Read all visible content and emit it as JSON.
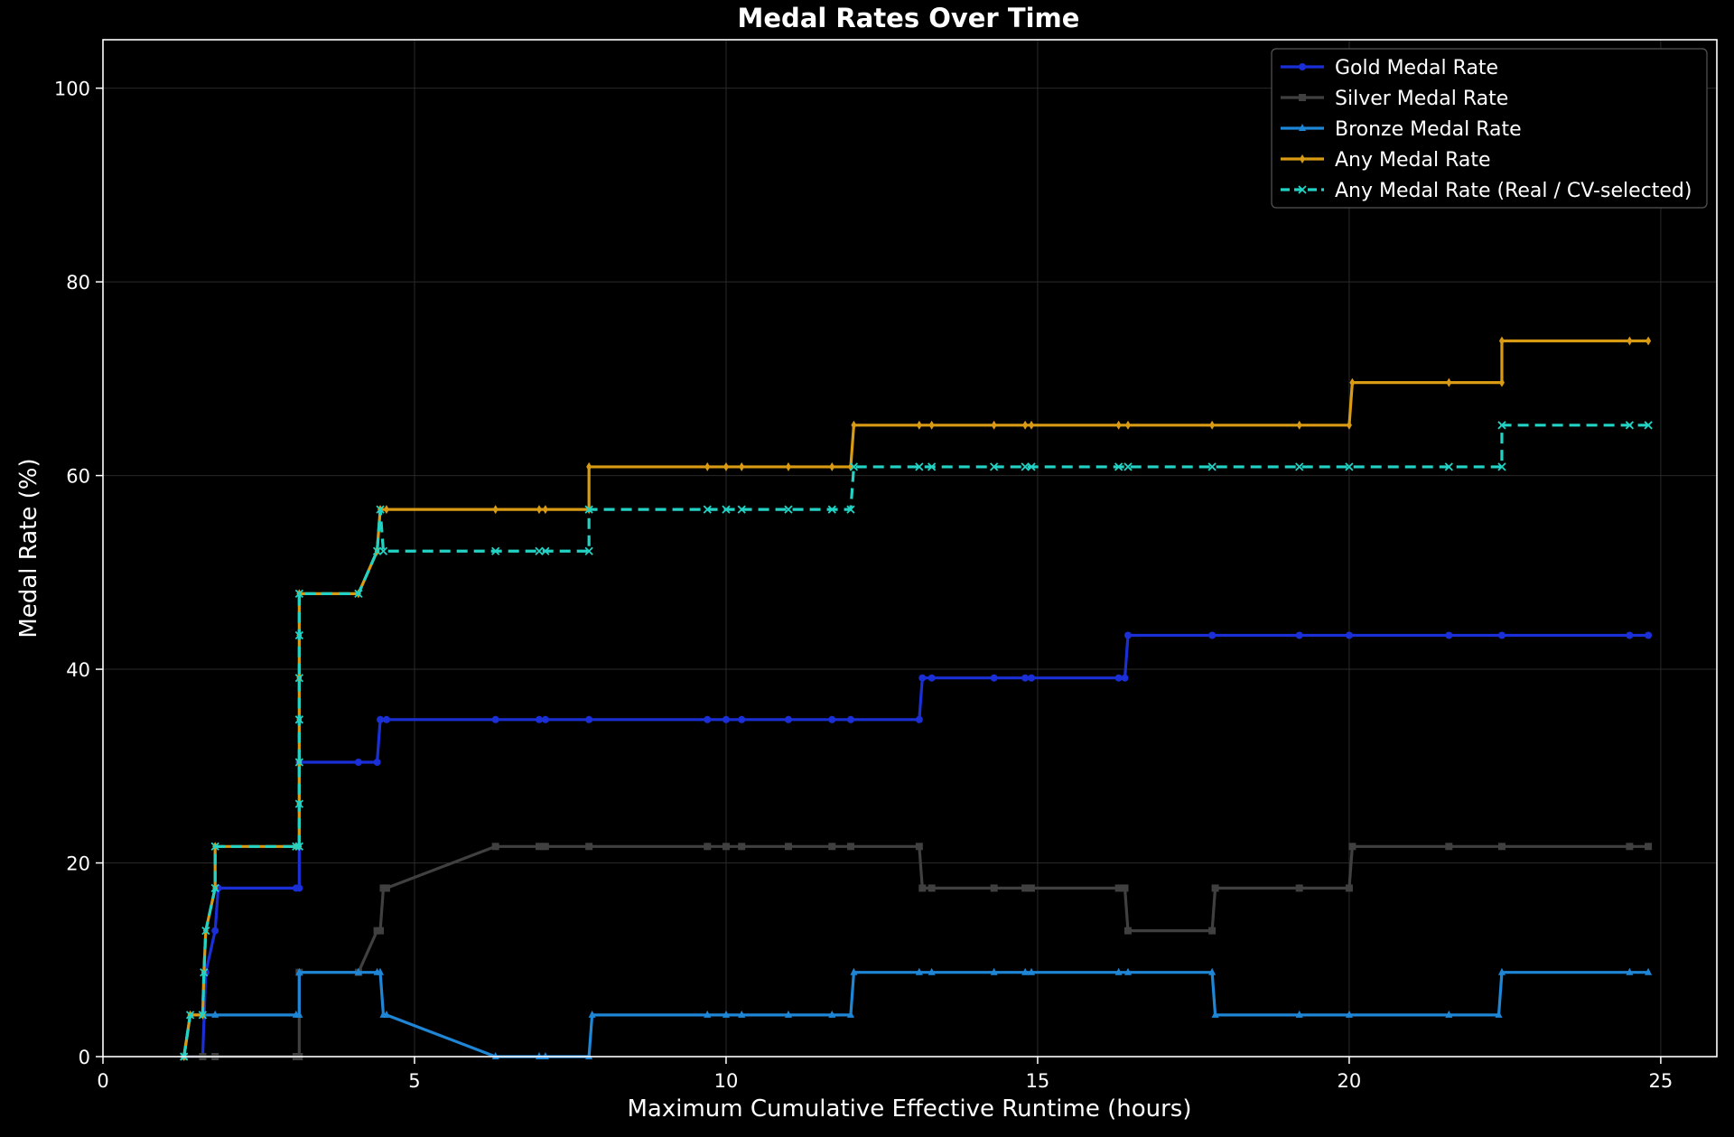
{
  "chart_data": {
    "type": "line",
    "title": "Medal Rates Over Time",
    "xlabel": "Maximum Cumulative Effective Runtime (hours)",
    "ylabel": "Medal Rate (%)",
    "xlim": [
      0,
      25.9
    ],
    "ylim": [
      0,
      105
    ],
    "xticks": [
      0,
      5,
      10,
      15,
      20,
      25
    ],
    "yticks": [
      0,
      20,
      40,
      60,
      80,
      100
    ],
    "grid": true,
    "legend_position": "top-right",
    "series": [
      {
        "name": "Gold Medal Rate",
        "color": "#1a2fd6",
        "marker": "circle",
        "dashed": false,
        "x": [
          1.3,
          1.6,
          1.65,
          1.8,
          1.85,
          3.1,
          3.15,
          3.15,
          4.1,
          4.4,
          4.45,
          4.55,
          6.3,
          7.0,
          7.1,
          7.8,
          9.7,
          10.0,
          10.25,
          11.0,
          11.7,
          12.0,
          13.1,
          13.15,
          13.3,
          14.3,
          14.8,
          14.9,
          16.3,
          16.4,
          16.45,
          17.8,
          19.2,
          20.0,
          21.6,
          22.45,
          24.5,
          24.8
        ],
        "values": [
          0,
          0,
          8.7,
          13.0,
          17.4,
          17.4,
          17.4,
          30.4,
          30.4,
          30.4,
          34.8,
          34.8,
          34.8,
          34.8,
          34.8,
          34.8,
          34.8,
          34.8,
          34.8,
          34.8,
          34.8,
          34.8,
          34.8,
          39.1,
          39.1,
          39.1,
          39.1,
          39.1,
          39.1,
          39.1,
          43.5,
          43.5,
          43.5,
          43.5,
          43.5,
          43.5,
          43.5,
          43.5
        ]
      },
      {
        "name": "Silver Medal Rate",
        "color": "#404040",
        "marker": "square",
        "dashed": false,
        "x": [
          1.3,
          1.6,
          1.8,
          3.1,
          3.15,
          3.15,
          4.1,
          4.4,
          4.45,
          4.5,
          4.55,
          6.3,
          7.0,
          7.1,
          7.8,
          9.7,
          10.0,
          10.25,
          11.0,
          11.7,
          12.0,
          13.1,
          13.15,
          13.3,
          14.3,
          14.8,
          14.9,
          16.3,
          16.4,
          16.45,
          17.8,
          17.85,
          19.2,
          20.0,
          20.05,
          21.6,
          22.45,
          24.5,
          24.8
        ],
        "values": [
          0,
          0,
          0,
          0,
          0,
          8.7,
          8.7,
          13.0,
          13.0,
          17.4,
          17.4,
          21.7,
          21.7,
          21.7,
          21.7,
          21.7,
          21.7,
          21.7,
          21.7,
          21.7,
          21.7,
          21.7,
          17.4,
          17.4,
          17.4,
          17.4,
          17.4,
          17.4,
          17.4,
          13.0,
          13.0,
          17.4,
          17.4,
          17.4,
          21.7,
          21.7,
          21.7,
          21.7,
          21.7
        ]
      },
      {
        "name": "Bronze Medal Rate",
        "color": "#1f86d6",
        "marker": "triangle",
        "dashed": false,
        "x": [
          1.3,
          1.4,
          1.6,
          1.8,
          3.1,
          3.15,
          3.15,
          4.1,
          4.4,
          4.45,
          4.5,
          4.55,
          6.3,
          7.0,
          7.1,
          7.8,
          7.85,
          9.7,
          10.0,
          10.25,
          11.0,
          11.7,
          12.0,
          12.05,
          13.1,
          13.3,
          14.3,
          14.8,
          14.9,
          16.3,
          16.45,
          17.8,
          17.85,
          19.2,
          20.0,
          21.6,
          22.4,
          22.45,
          24.5,
          24.8
        ],
        "values": [
          0,
          4.3,
          4.3,
          4.3,
          4.3,
          4.3,
          8.7,
          8.7,
          8.7,
          8.7,
          4.3,
          4.3,
          0,
          0,
          0,
          0,
          4.3,
          4.3,
          4.3,
          4.3,
          4.3,
          4.3,
          4.3,
          8.7,
          8.7,
          8.7,
          8.7,
          8.7,
          8.7,
          8.7,
          8.7,
          8.7,
          4.3,
          4.3,
          4.3,
          4.3,
          4.3,
          8.7,
          8.7,
          8.7
        ]
      },
      {
        "name": "Any Medal Rate",
        "color": "#d99a14",
        "marker": "diamond",
        "dashed": false,
        "x": [
          1.3,
          1.4,
          1.6,
          1.62,
          1.65,
          1.8,
          1.8,
          3.1,
          3.15,
          3.15,
          3.15,
          3.15,
          3.15,
          3.15,
          3.15,
          4.1,
          4.4,
          4.45,
          4.55,
          6.3,
          7.0,
          7.1,
          7.8,
          7.8,
          9.7,
          10.0,
          10.25,
          11.0,
          11.7,
          12.0,
          12.05,
          13.1,
          13.3,
          14.3,
          14.8,
          14.9,
          16.3,
          16.45,
          17.8,
          19.2,
          20.0,
          20.05,
          21.6,
          22.45,
          22.45,
          24.5,
          24.8
        ],
        "values": [
          0,
          4.3,
          4.3,
          8.7,
          13.0,
          17.4,
          21.7,
          21.7,
          21.7,
          26.1,
          30.4,
          34.8,
          39.1,
          43.5,
          47.8,
          47.8,
          52.2,
          56.5,
          56.5,
          56.5,
          56.5,
          56.5,
          56.5,
          60.9,
          60.9,
          60.9,
          60.9,
          60.9,
          60.9,
          60.9,
          65.2,
          65.2,
          65.2,
          65.2,
          65.2,
          65.2,
          65.2,
          65.2,
          65.2,
          65.2,
          65.2,
          69.6,
          69.6,
          69.6,
          73.9,
          73.9,
          73.9
        ]
      },
      {
        "name": "Any Medal Rate (Real / CV-selected)",
        "color": "#22d3c5",
        "marker": "x",
        "dashed": true,
        "x": [
          1.3,
          1.4,
          1.6,
          1.62,
          1.65,
          1.8,
          1.8,
          3.1,
          3.15,
          3.15,
          3.15,
          3.15,
          3.15,
          3.15,
          3.15,
          4.1,
          4.4,
          4.45,
          4.5,
          6.3,
          7.0,
          7.1,
          7.8,
          7.8,
          9.7,
          10.0,
          10.25,
          11.0,
          11.7,
          12.0,
          12.05,
          13.1,
          13.3,
          14.3,
          14.8,
          14.9,
          16.3,
          16.45,
          17.8,
          19.2,
          20.0,
          21.6,
          22.45,
          22.45,
          24.5,
          24.8
        ],
        "values": [
          0,
          4.3,
          4.3,
          8.7,
          13.0,
          17.4,
          21.7,
          21.7,
          21.7,
          26.1,
          30.4,
          34.8,
          39.1,
          43.5,
          47.8,
          47.8,
          52.2,
          56.5,
          52.2,
          52.2,
          52.2,
          52.2,
          52.2,
          56.5,
          56.5,
          56.5,
          56.5,
          56.5,
          56.5,
          56.5,
          60.9,
          60.9,
          60.9,
          60.9,
          60.9,
          60.9,
          60.9,
          60.9,
          60.9,
          60.9,
          60.9,
          60.9,
          60.9,
          65.2,
          65.2,
          65.2
        ]
      }
    ]
  }
}
